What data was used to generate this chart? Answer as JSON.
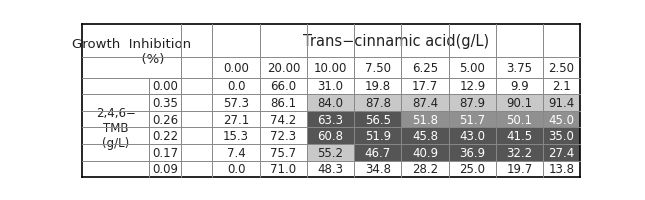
{
  "title": "Trans−cinnamic acid(g/L)",
  "tmb_values": [
    "0.00",
    "0.35",
    "0.26",
    "0.22",
    "0.17",
    "0.09"
  ],
  "acid_values": [
    "0.00",
    "20.00",
    "10.00",
    "7.50",
    "6.25",
    "5.00",
    "3.75",
    "2.50"
  ],
  "data": [
    [
      "0.0",
      "66.0",
      "31.0",
      "19.8",
      "17.7",
      "12.9",
      "9.9",
      "2.1"
    ],
    [
      "57.3",
      "86.1",
      "84.0",
      "87.8",
      "87.4",
      "87.9",
      "90.1",
      "91.4"
    ],
    [
      "27.1",
      "74.2",
      "63.3",
      "56.5",
      "51.8",
      "51.7",
      "50.1",
      "45.0"
    ],
    [
      "15.3",
      "72.3",
      "60.8",
      "51.9",
      "45.8",
      "43.0",
      "41.5",
      "35.0"
    ],
    [
      "7.4",
      "75.7",
      "55.2",
      "46.7",
      "40.9",
      "36.9",
      "32.2",
      "27.4"
    ],
    [
      "0.0",
      "71.0",
      "48.3",
      "34.8",
      "28.2",
      "25.0",
      "19.7",
      "13.8"
    ]
  ],
  "cell_bg": [
    [
      "white",
      "white",
      "white",
      "white",
      "white",
      "white",
      "white",
      "white"
    ],
    [
      "white",
      "white",
      "#c8c8c8",
      "#c8c8c8",
      "#c8c8c8",
      "#c8c8c8",
      "#c8c8c8",
      "#c8c8c8"
    ],
    [
      "white",
      "white",
      "#555555",
      "#555555",
      "#909090",
      "#909090",
      "#909090",
      "#909090"
    ],
    [
      "white",
      "white",
      "#555555",
      "#555555",
      "#555555",
      "#555555",
      "#555555",
      "#555555"
    ],
    [
      "white",
      "white",
      "#c8c8c8",
      "#555555",
      "#555555",
      "#555555",
      "#555555",
      "#555555"
    ],
    [
      "white",
      "white",
      "white",
      "white",
      "white",
      "white",
      "white",
      "white"
    ]
  ],
  "line_color": "#888888",
  "border_color": "#000000",
  "fig_bg": "white",
  "font_size": 8.5,
  "header_font_size": 9.5
}
